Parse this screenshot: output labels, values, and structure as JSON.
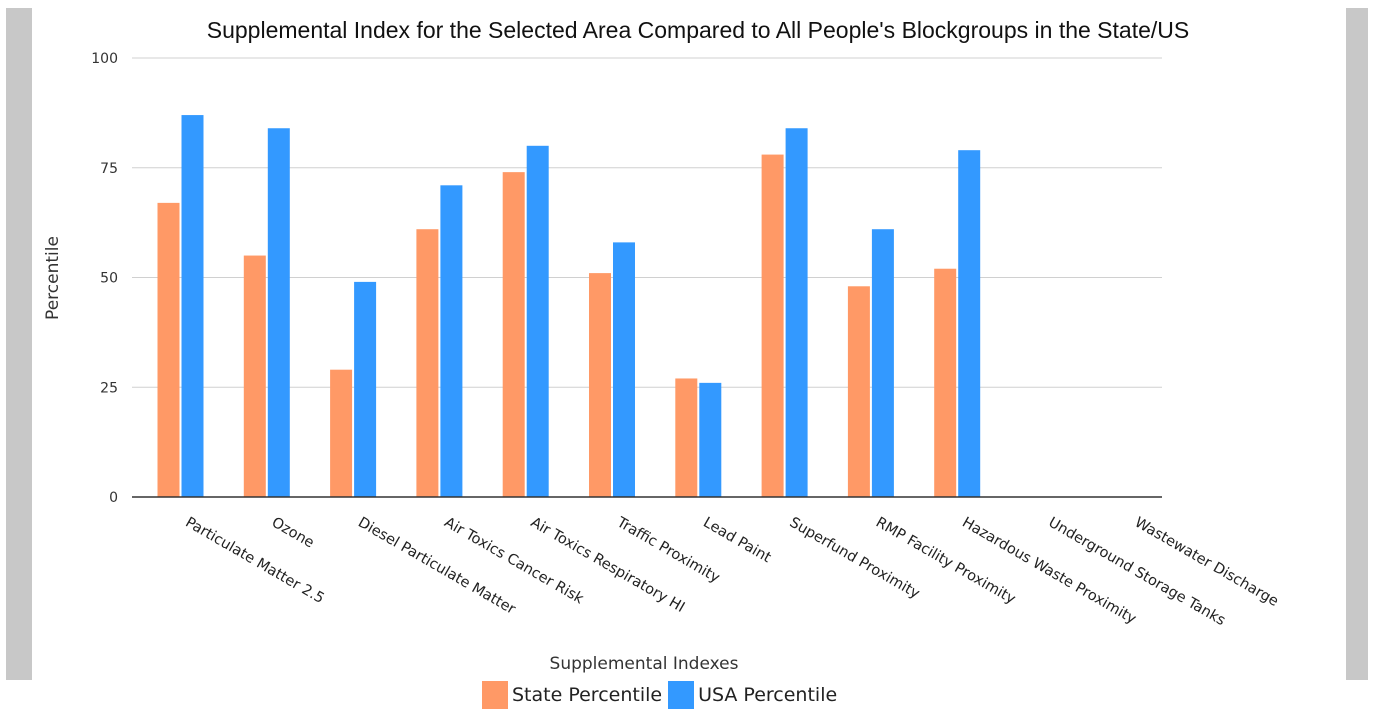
{
  "chart_data": {
    "type": "bar",
    "title": "Supplemental  Index for the Selected Area Compared to All People's Blockgroups in the State/US",
    "xlabel": "Supplemental  Indexes",
    "ylabel": "Percentile",
    "ylim": [
      0,
      100
    ],
    "yticks": [
      0,
      25,
      50,
      75,
      100
    ],
    "grid": true,
    "legend_position": "bottom",
    "categories": [
      "Particulate Matter 2.5",
      "Ozone",
      "Diesel Particulate Matter",
      "Air Toxics Cancer Risk",
      "Air Toxics Respiratory HI",
      "Traffic Proximity",
      "Lead Paint",
      "Superfund Proximity",
      "RMP Facility Proximity",
      "Hazardous Waste Proximity",
      "Underground Storage Tanks",
      "Wastewater Discharge"
    ],
    "series": [
      {
        "name": "State Percentile",
        "color": "#ff9966",
        "values": [
          67,
          55,
          29,
          61,
          74,
          51,
          27,
          78,
          48,
          52,
          null,
          null
        ]
      },
      {
        "name": "USA Percentile",
        "color": "#3399ff",
        "values": [
          87,
          84,
          49,
          71,
          80,
          58,
          26,
          84,
          61,
          79,
          null,
          null
        ]
      }
    ]
  }
}
